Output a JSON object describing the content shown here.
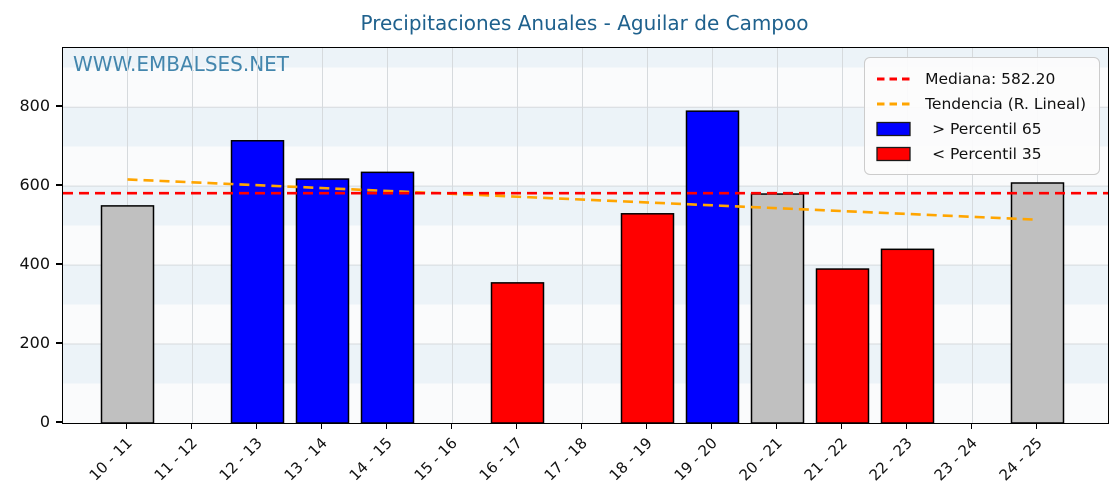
{
  "chart_data": {
    "type": "bar",
    "title": "Precipitaciones Anuales - Aguilar de Campoo",
    "watermark": "WWW.EMBALSES.NET",
    "categories": [
      "10 - 11",
      "11 - 12",
      "12 - 13",
      "13 - 14",
      "14 - 15",
      "15 - 16",
      "16 - 17",
      "17 - 18",
      "18 - 19",
      "19 - 20",
      "20 - 21",
      "21 - 22",
      "22 - 23",
      "23 - 24",
      "24 - 25"
    ],
    "values": [
      550,
      null,
      715,
      618,
      635,
      null,
      355,
      null,
      530,
      790,
      580,
      390,
      440,
      null,
      608
    ],
    "bar_colors": [
      "gray",
      null,
      "blue",
      "blue",
      "blue",
      null,
      "red",
      null,
      "red",
      "blue",
      "gray",
      "red",
      "red",
      null,
      "gray"
    ],
    "median": 582.2,
    "trend": {
      "start": 617,
      "end": 515
    },
    "ylim": [
      0,
      950
    ],
    "yticks": [
      0,
      200,
      400,
      600,
      800
    ],
    "xlabel": "",
    "ylabel": "",
    "grid": true,
    "legend_position": "top-right",
    "legend": [
      {
        "swatch": "dashed-line",
        "color": "#ff0000",
        "label": "Mediana: 582.20"
      },
      {
        "swatch": "dashed-line",
        "color": "#ffa500",
        "label": "Tendencia (R. Lineal)"
      },
      {
        "swatch": "patch",
        "color": "#0000ff",
        "label": "> Percentil 65"
      },
      {
        "swatch": "patch",
        "color": "#ff0000",
        "label": "< Percentil 35"
      }
    ],
    "colors": {
      "blue": "#0000ff",
      "red": "#ff0000",
      "gray": "#c0c0c0",
      "bar_edge": "#000000",
      "median_line": "#ff0000",
      "trend_line": "#ffa500",
      "title": "#1f618d",
      "watermark": "#4386ad",
      "gridline": "#d6dadd"
    }
  }
}
